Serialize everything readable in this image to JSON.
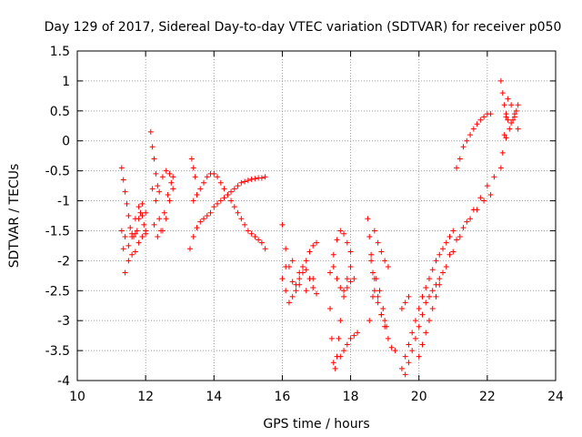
{
  "chart_data": {
    "type": "scatter",
    "title": "Day 129 of 2017, Sidereal Day-to-day VTEC variation (SDTVAR) for receiver p050",
    "xlabel": "GPS time / hours",
    "ylabel": "SDTVAR / TECUs",
    "xlim": [
      10,
      24
    ],
    "ylim": [
      -4,
      1.5
    ],
    "xticks": [
      10,
      12,
      14,
      16,
      18,
      20,
      22,
      24
    ],
    "xtick_labels": [
      "10",
      "12",
      "14",
      "16",
      "18",
      "20",
      "22",
      "24"
    ],
    "yticks": [
      -4,
      -3.5,
      -3,
      -2.5,
      -2,
      -1.5,
      -1,
      -0.5,
      0,
      0.5,
      1,
      1.5
    ],
    "ytick_labels": [
      "-4",
      "-3.5",
      "-3",
      "-2.5",
      "-2",
      "-1.5",
      "-1",
      "-0.5",
      "0",
      "0.5",
      "1",
      "1.5"
    ],
    "grid": true,
    "marker": "+",
    "marker_color": "#ff0000",
    "series": [
      {
        "name": "arc-11a",
        "x": [
          11.3,
          11.35,
          11.4,
          11.45,
          11.5,
          11.55,
          11.6,
          11.65,
          11.7,
          11.75,
          11.8,
          11.85,
          11.9,
          11.95,
          12.0
        ],
        "y": [
          -0.45,
          -0.65,
          -0.85,
          -1.05,
          -1.25,
          -1.45,
          -1.55,
          -1.6,
          -1.55,
          -1.5,
          -1.3,
          -1.2,
          -1.25,
          -1.4,
          -1.5
        ]
      },
      {
        "name": "arc-11b",
        "x": [
          11.3,
          11.35,
          11.4,
          11.5,
          11.6,
          11.7,
          11.8,
          11.9,
          12.0
        ],
        "y": [
          -1.5,
          -1.8,
          -2.2,
          -2.0,
          -1.6,
          -1.3,
          -1.1,
          -1.05,
          -1.2
        ]
      },
      {
        "name": "arc-11c",
        "x": [
          11.4,
          11.5,
          11.6,
          11.7,
          11.8,
          11.9,
          12.0
        ],
        "y": [
          -1.6,
          -1.75,
          -1.9,
          -1.85,
          -1.7,
          -1.6,
          -1.55
        ]
      },
      {
        "name": "arc-12a",
        "x": [
          12.15,
          12.2,
          12.25,
          12.3,
          12.35,
          12.4,
          12.5,
          12.6,
          12.7,
          12.8
        ],
        "y": [
          0.15,
          -0.1,
          -0.3,
          -0.55,
          -0.75,
          -0.85,
          -0.6,
          -0.5,
          -0.55,
          -0.6
        ]
      },
      {
        "name": "arc-12b",
        "x": [
          12.2,
          12.3,
          12.4,
          12.5,
          12.6,
          12.7,
          12.8
        ],
        "y": [
          -0.8,
          -1.0,
          -1.3,
          -1.5,
          -1.3,
          -1.0,
          -0.8
        ]
      },
      {
        "name": "arc-12c",
        "x": [
          12.25,
          12.35,
          12.45,
          12.55,
          12.65,
          12.75
        ],
        "y": [
          -1.4,
          -1.6,
          -1.5,
          -1.2,
          -0.9,
          -0.7
        ]
      },
      {
        "name": "arc-13a",
        "x": [
          13.3,
          13.4,
          13.5,
          13.6,
          13.7,
          13.8,
          13.9,
          14.0,
          14.1,
          14.2,
          14.3,
          14.4,
          14.5,
          14.6,
          14.7,
          14.8,
          14.9,
          15.0,
          15.1,
          15.2,
          15.3,
          15.4,
          15.5
        ],
        "y": [
          -1.8,
          -1.6,
          -1.45,
          -1.35,
          -1.3,
          -1.25,
          -1.2,
          -1.1,
          -1.05,
          -1.0,
          -0.95,
          -0.9,
          -0.85,
          -0.8,
          -0.75,
          -0.7,
          -0.68,
          -0.66,
          -0.64,
          -0.63,
          -0.62,
          -0.62,
          -0.6
        ]
      },
      {
        "name": "arc-13b",
        "x": [
          13.4,
          13.5,
          13.6,
          13.7,
          13.8,
          13.9,
          14.0,
          14.1,
          14.2,
          14.3,
          14.4,
          14.5,
          14.6,
          14.7,
          14.8,
          14.9,
          15.0,
          15.1,
          15.2,
          15.3,
          15.4,
          15.5
        ],
        "y": [
          -1.0,
          -0.9,
          -0.8,
          -0.7,
          -0.6,
          -0.55,
          -0.55,
          -0.6,
          -0.7,
          -0.8,
          -0.9,
          -1.0,
          -1.1,
          -1.2,
          -1.3,
          -1.4,
          -1.5,
          -1.55,
          -1.6,
          -1.65,
          -1.7,
          -1.8
        ]
      },
      {
        "name": "arc-13c",
        "x": [
          13.35,
          13.4,
          13.45
        ],
        "y": [
          -0.3,
          -0.45,
          -0.6
        ]
      },
      {
        "name": "arc-16a",
        "x": [
          16.0,
          16.1,
          16.2,
          16.3,
          16.4,
          16.5,
          16.6,
          16.7,
          16.8,
          16.9,
          17.0
        ],
        "y": [
          -1.4,
          -1.8,
          -2.1,
          -2.35,
          -2.5,
          -2.4,
          -2.2,
          -2.0,
          -1.85,
          -1.75,
          -1.7
        ]
      },
      {
        "name": "arc-16b",
        "x": [
          16.0,
          16.1,
          16.2,
          16.3,
          16.4,
          16.5,
          16.6,
          16.7,
          16.8,
          16.9,
          17.0
        ],
        "y": [
          -2.3,
          -2.5,
          -2.7,
          -2.6,
          -2.4,
          -2.2,
          -2.1,
          -2.15,
          -2.3,
          -2.45,
          -2.55
        ]
      },
      {
        "name": "arc-16c",
        "x": [
          16.1,
          16.3,
          16.5,
          16.7,
          16.9
        ],
        "y": [
          -2.1,
          -2.0,
          -2.3,
          -2.5,
          -2.3
        ]
      },
      {
        "name": "arc-17a",
        "x": [
          17.4,
          17.45,
          17.5,
          17.55,
          17.6,
          17.65,
          17.7,
          17.8,
          17.9,
          18.0
        ],
        "y": [
          -2.8,
          -3.3,
          -3.7,
          -3.8,
          -3.6,
          -3.3,
          -3.0,
          -2.6,
          -2.3,
          -2.1
        ]
      },
      {
        "name": "arc-17b",
        "x": [
          17.4,
          17.5,
          17.6,
          17.7,
          17.8,
          17.9,
          18.0
        ],
        "y": [
          -2.2,
          -1.9,
          -1.65,
          -1.5,
          -1.55,
          -1.7,
          -1.85
        ]
      },
      {
        "name": "arc-17c",
        "x": [
          17.5,
          17.6,
          17.7,
          17.8,
          17.9,
          18.0,
          18.1
        ],
        "y": [
          -2.1,
          -2.3,
          -2.45,
          -2.5,
          -2.45,
          -2.35,
          -2.3
        ]
      },
      {
        "name": "arc-17d",
        "x": [
          17.7,
          17.8,
          17.9,
          18.0,
          18.1,
          18.2
        ],
        "y": [
          -3.6,
          -3.5,
          -3.4,
          -3.3,
          -3.25,
          -3.2
        ]
      },
      {
        "name": "arc-18a",
        "x": [
          18.5,
          18.55,
          18.6,
          18.65,
          18.7,
          18.8,
          18.9,
          19.0
        ],
        "y": [
          -1.3,
          -1.6,
          -1.9,
          -2.2,
          -2.5,
          -2.7,
          -2.9,
          -3.0
        ]
      },
      {
        "name": "arc-18b",
        "x": [
          18.55,
          18.65,
          18.75,
          18.85,
          18.95,
          19.05
        ],
        "y": [
          -3.0,
          -2.6,
          -2.3,
          -2.5,
          -2.8,
          -3.1
        ]
      },
      {
        "name": "arc-18c",
        "x": [
          18.6,
          18.7,
          18.8,
          18.9,
          19.0,
          19.1,
          19.2,
          19.3
        ],
        "y": [
          -2.0,
          -2.3,
          -2.6,
          -2.9,
          -3.1,
          -3.3,
          -3.45,
          -3.5
        ]
      },
      {
        "name": "arc-18d",
        "x": [
          18.7,
          18.8,
          18.9,
          19.0,
          19.1
        ],
        "y": [
          -1.5,
          -1.7,
          -1.85,
          -2.0,
          -2.1
        ]
      },
      {
        "name": "arc-19a",
        "x": [
          19.5,
          19.6,
          19.7,
          19.8,
          19.9,
          20.0,
          20.1,
          20.2,
          20.3,
          20.4,
          20.5,
          20.6
        ],
        "y": [
          -3.8,
          -3.9,
          -3.7,
          -3.5,
          -3.3,
          -3.1,
          -2.9,
          -2.7,
          -2.6,
          -2.5,
          -2.4,
          -2.3
        ]
      },
      {
        "name": "arc-19b",
        "x": [
          19.6,
          19.7,
          19.8,
          19.9,
          20.0,
          20.1,
          20.2,
          20.3,
          20.4,
          20.5,
          20.6,
          20.7,
          20.8,
          20.9,
          21.0
        ],
        "y": [
          -3.6,
          -3.4,
          -3.2,
          -3.0,
          -2.8,
          -2.6,
          -2.45,
          -2.3,
          -2.15,
          -2.0,
          -1.9,
          -1.8,
          -1.7,
          -1.6,
          -1.5
        ]
      },
      {
        "name": "arc-19c",
        "x": [
          19.5,
          19.6,
          19.7
        ],
        "y": [
          -2.8,
          -2.7,
          -2.6
        ]
      },
      {
        "name": "arc-20a",
        "x": [
          20.0,
          20.2,
          20.4,
          20.6,
          20.8,
          21.0,
          21.2,
          21.4,
          21.6,
          21.8,
          22.0,
          22.2
        ],
        "y": [
          -3.6,
          -3.2,
          -2.8,
          -2.4,
          -2.1,
          -1.85,
          -1.6,
          -1.35,
          -1.15,
          -0.95,
          -0.75,
          -0.6
        ]
      },
      {
        "name": "arc-20b",
        "x": [
          20.1,
          20.3,
          20.5,
          20.7,
          20.9,
          21.1,
          21.3,
          21.5,
          21.7,
          21.9,
          22.1
        ],
        "y": [
          -3.4,
          -3.0,
          -2.6,
          -2.2,
          -1.9,
          -1.65,
          -1.45,
          -1.3,
          -1.15,
          -1.0,
          -0.9
        ]
      },
      {
        "name": "arc-21a",
        "x": [
          21.1,
          21.2,
          21.3,
          21.4,
          21.5,
          21.6,
          21.7,
          21.8,
          21.9,
          22.0,
          22.1
        ],
        "y": [
          -0.45,
          -0.3,
          -0.1,
          0.0,
          0.1,
          0.2,
          0.28,
          0.35,
          0.4,
          0.45,
          0.45
        ]
      },
      {
        "name": "arc-22a",
        "x": [
          22.4,
          22.45,
          22.5,
          22.55,
          22.6,
          22.7,
          22.8,
          22.9
        ],
        "y": [
          -0.45,
          -0.2,
          0.1,
          0.4,
          0.7,
          0.6,
          0.4,
          0.2
        ]
      },
      {
        "name": "arc-22b",
        "x": [
          22.4,
          22.45,
          22.5,
          22.55,
          22.6,
          22.7,
          22.8,
          22.9
        ],
        "y": [
          1.0,
          0.8,
          0.6,
          0.45,
          0.35,
          0.3,
          0.45,
          0.6
        ]
      },
      {
        "name": "arc-22c",
        "x": [
          22.55,
          22.65,
          22.75,
          22.85
        ],
        "y": [
          0.05,
          0.2,
          0.35,
          0.5
        ]
      }
    ]
  }
}
